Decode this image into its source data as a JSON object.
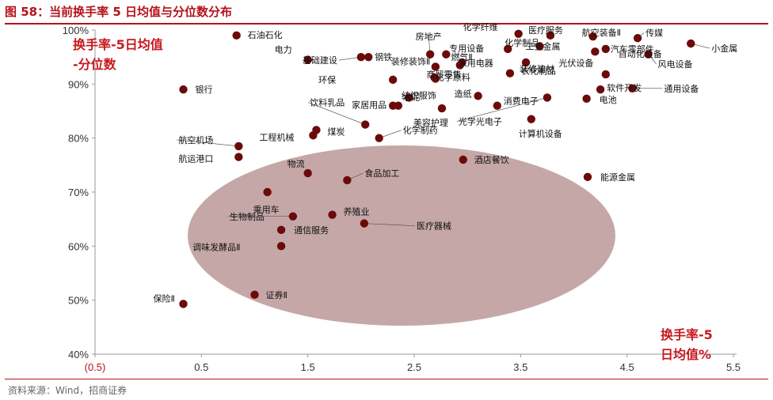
{
  "title": "图 58：当前换手率 5 日均值与分位数分布",
  "source": "资料来源：Wind，招商证券",
  "chart_data": {
    "type": "scatter",
    "ylabel_lines": [
      "换手率-5日均值",
      "-分位数"
    ],
    "xlabel_lines": [
      "换手率-5",
      "日均值%"
    ],
    "x_ticks": [
      "(0.5)",
      "0.5",
      "1.5",
      "2.5",
      "3.5",
      "4.5",
      "5.5"
    ],
    "y_ticks": [
      "40%",
      "50%",
      "60%",
      "70%",
      "80%",
      "90%",
      "100%"
    ],
    "xlim": [
      -0.5,
      5.5
    ],
    "ylim": [
      40,
      100
    ],
    "highlight": {
      "fill": "#8b4f4f",
      "opacity": 0.5
    },
    "marker_color": "#6b0a0a",
    "points": [
      {
        "name": "石油石化",
        "x": 0.83,
        "y": 99.0
      },
      {
        "name": "电力",
        "x": 1.5,
        "y": 94.5
      },
      {
        "name": "基础建设",
        "x": 2.0,
        "y": 95.0
      },
      {
        "name": "钢铁",
        "x": 2.07,
        "y": 95.0
      },
      {
        "name": "房地产",
        "x": 2.65,
        "y": 95.5
      },
      {
        "name": "化学纤维",
        "x": 3.48,
        "y": 99.3
      },
      {
        "name": "医疗服务",
        "x": 3.78,
        "y": 99.0
      },
      {
        "name": "航空装备Ⅱ",
        "x": 4.18,
        "y": 98.8
      },
      {
        "name": "传媒",
        "x": 4.6,
        "y": 98.5
      },
      {
        "name": "小金属",
        "x": 5.1,
        "y": 97.5
      },
      {
        "name": "工业金属",
        "x": 3.68,
        "y": 97.0
      },
      {
        "name": "专用设备",
        "x": 2.8,
        "y": 95.5
      },
      {
        "name": "化学制品",
        "x": 3.38,
        "y": 96.5
      },
      {
        "name": "汽车零部件",
        "x": 4.3,
        "y": 96.5
      },
      {
        "name": "光伏设备",
        "x": 4.2,
        "y": 96.0
      },
      {
        "name": "风电设备",
        "x": 4.7,
        "y": 95.5
      },
      {
        "name": "燃气Ⅱ",
        "x": 2.95,
        "y": 94.0
      },
      {
        "name": "装修建材",
        "x": 3.55,
        "y": 94.0
      },
      {
        "name": "家用电器",
        "x": 2.93,
        "y": 93.5
      },
      {
        "name": "农化制品",
        "x": 3.4,
        "y": 92.0
      },
      {
        "name": "装修装饰Ⅱ",
        "x": 2.7,
        "y": 93.2
      },
      {
        "name": "商贸零售",
        "x": 2.69,
        "y": 91.2
      },
      {
        "name": "化学原料",
        "x": 2.7,
        "y": 91.0
      },
      {
        "name": "自动化设备",
        "x": 4.3,
        "y": 91.8
      },
      {
        "name": "环保",
        "x": 2.3,
        "y": 90.8
      },
      {
        "name": "软件开发",
        "x": 4.25,
        "y": 89.0
      },
      {
        "name": "通用设备",
        "x": 4.55,
        "y": 89.2
      },
      {
        "name": "银行",
        "x": 0.33,
        "y": 89.0
      },
      {
        "name": "光学光电子",
        "x": 3.75,
        "y": 87.5
      },
      {
        "name": "电池",
        "x": 4.12,
        "y": 87.3
      },
      {
        "name": "造纸",
        "x": 3.1,
        "y": 87.8
      },
      {
        "name": "消费电子",
        "x": 3.28,
        "y": 86.0
      },
      {
        "name": "水泥",
        "x": 2.45,
        "y": 87.5
      },
      {
        "name": "家居用品",
        "x": 2.3,
        "y": 86.0
      },
      {
        "name": "美容护理",
        "x": 2.76,
        "y": 85.5
      },
      {
        "name": "饮料乳品",
        "x": 2.04,
        "y": 82.5
      },
      {
        "name": "纺织服饰",
        "x": 2.35,
        "y": 86.0
      },
      {
        "name": "计算机设备",
        "x": 3.6,
        "y": 83.5
      },
      {
        "name": "煤炭",
        "x": 1.58,
        "y": 81.5
      },
      {
        "name": "工程机械",
        "x": 1.55,
        "y": 80.5
      },
      {
        "name": "化学制药",
        "x": 2.17,
        "y": 80.0
      },
      {
        "name": "航空机场",
        "x": 0.85,
        "y": 78.5
      },
      {
        "name": "航运港口",
        "x": 0.85,
        "y": 76.5
      },
      {
        "name": "酒店餐饮",
        "x": 2.96,
        "y": 76.0
      },
      {
        "name": "物流",
        "x": 1.5,
        "y": 73.5
      },
      {
        "name": "食品加工",
        "x": 1.87,
        "y": 72.2
      },
      {
        "name": "能源金属",
        "x": 4.13,
        "y": 72.8
      },
      {
        "name": "乘用车",
        "x": 1.12,
        "y": 70.0
      },
      {
        "name": "养殖业",
        "x": 1.73,
        "y": 65.8
      },
      {
        "name": "生物制品",
        "x": 1.36,
        "y": 65.5
      },
      {
        "name": "医疗器械",
        "x": 2.03,
        "y": 64.2
      },
      {
        "name": "通信服务",
        "x": 1.25,
        "y": 63.0
      },
      {
        "name": "调味发酵品Ⅱ",
        "x": 1.25,
        "y": 60.0
      },
      {
        "name": "保险Ⅱ",
        "x": 0.33,
        "y": 49.3
      },
      {
        "name": "证券Ⅱ",
        "x": 1.0,
        "y": 51.0
      }
    ]
  }
}
